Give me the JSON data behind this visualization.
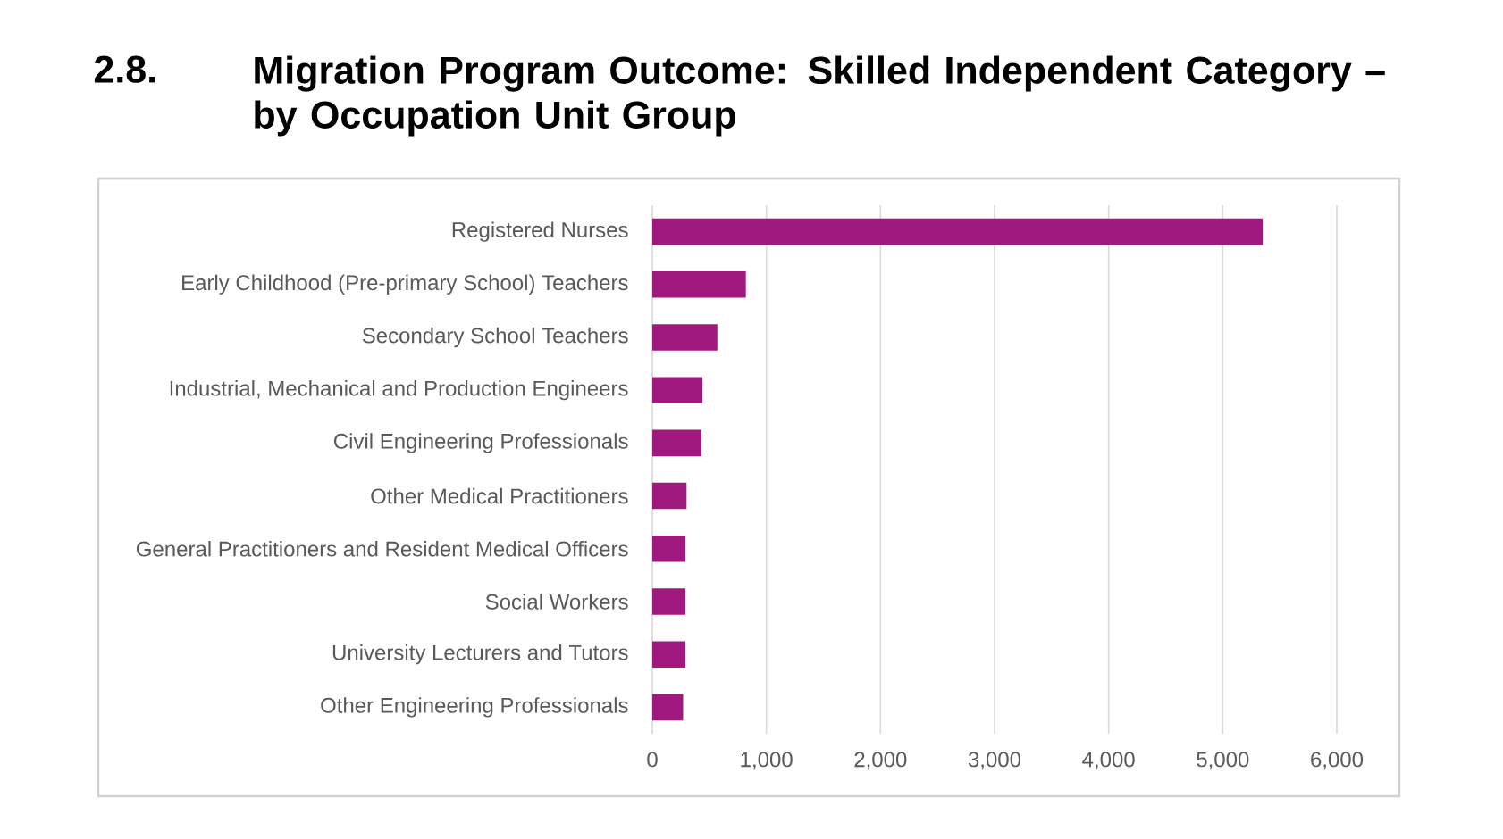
{
  "chart_data": {
    "type": "bar",
    "orientation": "horizontal",
    "title": "Migration Program Outcome: Skilled Independent Category – by Occupation Unit Group",
    "annotations": [
      "2.8."
    ],
    "categories": [
      "Registered Nurses",
      "Early Childhood (Pre-primary School) Teachers",
      "Secondary School Teachers",
      "Industrial, Mechanical and Production Engineers",
      "Civil Engineering Professionals",
      "Other Medical Practitioners",
      "General Practitioners and Resident Medical Officers",
      "Social Workers",
      "University Lecturers and Tutors",
      "Other Engineering Professionals"
    ],
    "values": [
      5350,
      820,
      570,
      440,
      430,
      300,
      290,
      290,
      290,
      270
    ],
    "color": "#a0197f",
    "xlim": [
      0,
      6000
    ],
    "xticks": [
      0,
      {
        "value": 1000,
        "label": "1,000"
      },
      {
        "value": 2000,
        "label": "2,000"
      },
      {
        "value": 3000,
        "label": "3,000"
      },
      {
        "value": 4000,
        "label": "4,000"
      },
      {
        "value": 5000,
        "label": "5,000"
      },
      {
        "value": 6000,
        "label": "6,000"
      }
    ],
    "grid": "x"
  }
}
